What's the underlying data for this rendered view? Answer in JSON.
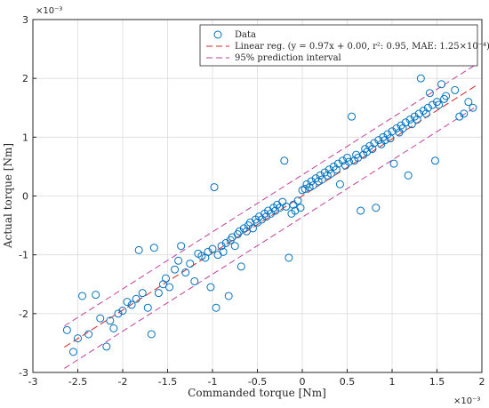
{
  "chart_data": {
    "type": "scatter",
    "title": "",
    "xlabel": "Commanded torque [Nm]",
    "ylabel": "Actual torque [Nm]",
    "x_exponent_label": "×10⁻³",
    "y_exponent_label": "×10⁻³",
    "x_scale": 0.001,
    "y_scale": 0.001,
    "xlim": [
      -0.003,
      0.002
    ],
    "ylim": [
      -0.003,
      0.003
    ],
    "xticks": [
      -0.003,
      -0.0025,
      -0.002,
      -0.0015,
      -0.001,
      -0.0005,
      0,
      0.0005,
      0.001,
      0.0015,
      0.002
    ],
    "xtick_labels": [
      "-3",
      "-2.5",
      "-2",
      "-1.5",
      "-1",
      "-0.5",
      "0",
      "0.5",
      "1",
      "1.5",
      "2"
    ],
    "yticks": [
      -0.003,
      -0.002,
      -0.001,
      0,
      0.001,
      0.002,
      0.003
    ],
    "ytick_labels": [
      "-3",
      "-2",
      "-1",
      "0",
      "1",
      "2",
      "3"
    ],
    "grid": true,
    "legend_position": "top-right",
    "colors": {
      "data": "#0072bd",
      "regression": "#d62728",
      "interval": "#c2409a"
    },
    "series": [
      {
        "name": "Data",
        "kind": "scatter",
        "points": [
          [
            -0.00262,
            -0.00228
          ],
          [
            -0.00255,
            -0.00265
          ],
          [
            -0.0025,
            -0.00242
          ],
          [
            -0.00245,
            -0.0017
          ],
          [
            -0.00238,
            -0.00235
          ],
          [
            -0.0023,
            -0.00168
          ],
          [
            -0.00225,
            -0.00208
          ],
          [
            -0.00218,
            -0.00256
          ],
          [
            -0.00214,
            -0.00212
          ],
          [
            -0.0021,
            -0.00225
          ],
          [
            -0.00205,
            -0.002
          ],
          [
            -0.002,
            -0.00195
          ],
          [
            -0.00195,
            -0.0018
          ],
          [
            -0.0019,
            -0.00185
          ],
          [
            -0.00185,
            -0.00175
          ],
          [
            -0.00182,
            -0.00092
          ],
          [
            -0.00178,
            -0.00165
          ],
          [
            -0.00172,
            -0.0019
          ],
          [
            -0.00168,
            -0.00235
          ],
          [
            -0.00165,
            -0.00088
          ],
          [
            -0.0016,
            -0.00165
          ],
          [
            -0.00155,
            -0.0015
          ],
          [
            -0.00152,
            -0.0014
          ],
          [
            -0.00148,
            -0.00155
          ],
          [
            -0.00142,
            -0.00125
          ],
          [
            -0.00138,
            -0.0011
          ],
          [
            -0.00135,
            -0.00085
          ],
          [
            -0.0013,
            -0.0013
          ],
          [
            -0.00125,
            -0.00115
          ],
          [
            -0.0012,
            -0.00145
          ],
          [
            -0.00116,
            -0.00098
          ],
          [
            -0.00112,
            -0.00102
          ],
          [
            -0.00108,
            -0.00105
          ],
          [
            -0.00105,
            -0.00095
          ],
          [
            -0.00102,
            -0.00155
          ],
          [
            -0.001,
            -0.0009
          ],
          [
            -0.00098,
            0.00015
          ],
          [
            -0.00096,
            -0.0019
          ],
          [
            -0.00094,
            -0.001
          ],
          [
            -0.0009,
            -0.00085
          ],
          [
            -0.00088,
            -0.00095
          ],
          [
            -0.00085,
            -0.0008
          ],
          [
            -0.00082,
            -0.0017
          ],
          [
            -0.0008,
            -0.00075
          ],
          [
            -0.00078,
            -0.0007
          ],
          [
            -0.00075,
            -0.00085
          ],
          [
            -0.00072,
            -0.00065
          ],
          [
            -0.0007,
            -0.0006
          ],
          [
            -0.00068,
            -0.0012
          ],
          [
            -0.00065,
            -0.00055
          ],
          [
            -0.00062,
            -0.0006
          ],
          [
            -0.0006,
            -0.0005
          ],
          [
            -0.00058,
            -0.00045
          ],
          [
            -0.00055,
            -0.00055
          ],
          [
            -0.00052,
            -0.0004
          ],
          [
            -0.0005,
            -0.00045
          ],
          [
            -0.00048,
            -0.00035
          ],
          [
            -0.00045,
            -0.0004
          ],
          [
            -0.00042,
            -0.0003
          ],
          [
            -0.0004,
            -0.00035
          ],
          [
            -0.00038,
            -0.00025
          ],
          [
            -0.00035,
            -0.0003
          ],
          [
            -0.00032,
            -0.0002
          ],
          [
            -0.0003,
            -0.00025
          ],
          [
            -0.00028,
            -0.00015
          ],
          [
            -0.00025,
            -0.0002
          ],
          [
            -0.00022,
            -0.0001
          ],
          [
            -0.0002,
            0.0006
          ],
          [
            -0.00018,
            -0.00018
          ],
          [
            -0.00015,
            -0.00105
          ],
          [
            -0.00012,
            -0.0003
          ],
          [
            -0.0001,
            -0.00015
          ],
          [
            -8e-05,
            -0.00025
          ],
          [
            -5e-05,
            -8e-05
          ],
          [
            -2e-05,
            -0.0002
          ],
          [
            0.0,
            0.0001
          ],
          [
            3e-05,
            0.00012
          ],
          [
            5e-05,
            0.0002
          ],
          [
            8e-05,
            0.00015
          ],
          [
            0.0001,
            0.00025
          ],
          [
            0.00012,
            0.00018
          ],
          [
            0.00015,
            0.0003
          ],
          [
            0.00018,
            0.00025
          ],
          [
            0.0002,
            0.00035
          ],
          [
            0.00022,
            0.00028
          ],
          [
            0.00025,
            0.0004
          ],
          [
            0.00028,
            0.00035
          ],
          [
            0.0003,
            0.00045
          ],
          [
            0.00032,
            0.00038
          ],
          [
            0.00035,
            0.0005
          ],
          [
            0.00038,
            0.00045
          ],
          [
            0.0004,
            0.00055
          ],
          [
            0.00042,
            0.0002
          ],
          [
            0.00045,
            0.0006
          ],
          [
            0.00048,
            0.00052
          ],
          [
            0.0005,
            0.00065
          ],
          [
            0.00052,
            0.00058
          ],
          [
            0.00055,
            0.00135
          ],
          [
            0.00058,
            0.0006
          ],
          [
            0.0006,
            0.0007
          ],
          [
            0.00062,
            0.00065
          ],
          [
            0.00065,
            -0.00025
          ],
          [
            0.00068,
            0.0007
          ],
          [
            0.0007,
            0.0008
          ],
          [
            0.00072,
            0.00075
          ],
          [
            0.00075,
            0.00085
          ],
          [
            0.00078,
            0.0008
          ],
          [
            0.0008,
            0.0009
          ],
          [
            0.00082,
            -0.0002
          ],
          [
            0.00085,
            0.00095
          ],
          [
            0.00088,
            0.00088
          ],
          [
            0.0009,
            0.001
          ],
          [
            0.00092,
            0.00095
          ],
          [
            0.00095,
            0.00105
          ],
          [
            0.00098,
            0.00098
          ],
          [
            0.001,
            0.0011
          ],
          [
            0.00102,
            0.00055
          ],
          [
            0.00105,
            0.00115
          ],
          [
            0.00108,
            0.00108
          ],
          [
            0.0011,
            0.0012
          ],
          [
            0.00112,
            0.00115
          ],
          [
            0.00115,
            0.00125
          ],
          [
            0.00118,
            0.00035
          ],
          [
            0.0012,
            0.0013
          ],
          [
            0.00122,
            0.00122
          ],
          [
            0.00125,
            0.00135
          ],
          [
            0.00128,
            0.0013
          ],
          [
            0.0013,
            0.0014
          ],
          [
            0.00132,
            0.002
          ],
          [
            0.00135,
            0.00145
          ],
          [
            0.00138,
            0.0014
          ],
          [
            0.0014,
            0.0015
          ],
          [
            0.00142,
            0.00175
          ],
          [
            0.00145,
            0.00155
          ],
          [
            0.00148,
            0.0006
          ],
          [
            0.0015,
            0.0016
          ],
          [
            0.00152,
            0.00155
          ],
          [
            0.00155,
            0.0019
          ],
          [
            0.00158,
            0.00165
          ],
          [
            0.0016,
            0.0017
          ],
          [
            0.0017,
            0.0018
          ],
          [
            0.00175,
            0.00135
          ],
          [
            0.0018,
            0.0014
          ],
          [
            0.00185,
            0.0016
          ],
          [
            0.0019,
            0.0015
          ]
        ]
      },
      {
        "name": "Linear reg. (y = 0.97x + 0.00, r²: 0.95, MAE: 1.25×10⁻⁴)",
        "kind": "line",
        "slope": 0.97,
        "intercept": 0.0,
        "x": [
          -0.00265,
          0.00195
        ]
      },
      {
        "name": "95% prediction interval",
        "kind": "band",
        "slope": 0.97,
        "half_width": 0.00036,
        "x": [
          -0.00265,
          0.00195
        ]
      }
    ]
  }
}
